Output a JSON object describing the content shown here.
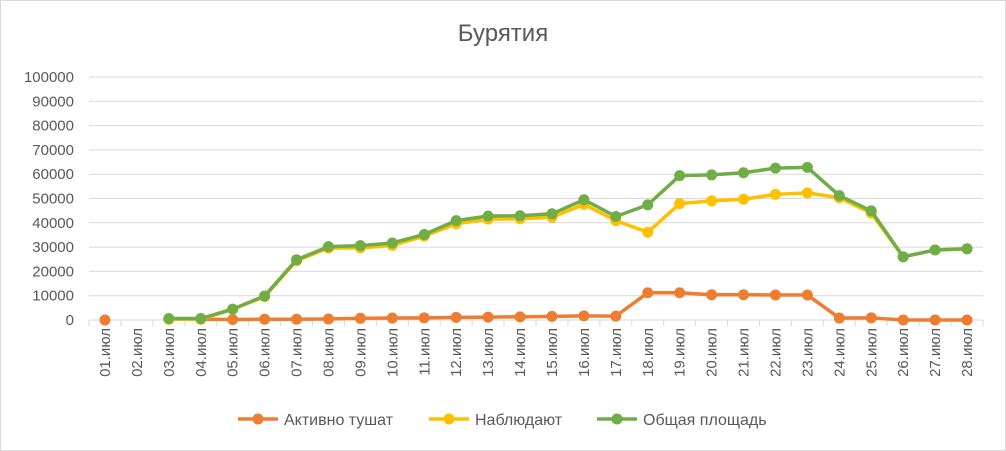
{
  "chart_data": {
    "type": "line",
    "title": "Бурятия",
    "xlabel": "",
    "ylabel": "",
    "ylim": [
      0,
      100000
    ],
    "yticks": [
      0,
      10000,
      20000,
      30000,
      40000,
      50000,
      60000,
      70000,
      80000,
      90000,
      100000
    ],
    "grid": true,
    "legend_position": "bottom",
    "categories": [
      "01.июл",
      "02.июл",
      "03.июл",
      "04.июл",
      "05.июл",
      "06.июл",
      "07.июл",
      "08.июл",
      "09.июл",
      "10.июл",
      "11.июл",
      "12.июл",
      "13.июл",
      "14.июл",
      "15.июл",
      "16.июл",
      "17.июл",
      "18.июл",
      "19.июл",
      "20.июл",
      "21.июл",
      "22.июл",
      "23.июл",
      "24.июл",
      "25.июл",
      "26.июл",
      "27.июл",
      "28.июл"
    ],
    "series": [
      {
        "name": "Активно тушат",
        "color": "#ed7d31",
        "values": [
          0,
          null,
          300,
          300,
          200,
          300,
          300,
          400,
          700,
          800,
          900,
          1100,
          1200,
          1300,
          1500,
          1700,
          1600,
          11200,
          11200,
          10400,
          10400,
          10300,
          10300,
          800,
          900,
          0,
          0,
          0
        ]
      },
      {
        "name": "Наблюдают",
        "color": "#ffc000",
        "values": [
          null,
          null,
          300,
          300,
          4400,
          9600,
          24400,
          29600,
          29700,
          30700,
          34500,
          39600,
          41500,
          41600,
          42300,
          47600,
          40900,
          36100,
          47900,
          49000,
          49700,
          51700,
          52300,
          50300,
          44000,
          26000,
          28800,
          29300
        ]
      },
      {
        "name": "Общая площадь",
        "color": "#70ad47",
        "values": [
          null,
          null,
          600,
          600,
          4500,
          9900,
          24800,
          30200,
          30600,
          31700,
          35200,
          40900,
          42800,
          42900,
          43700,
          49500,
          42600,
          47400,
          59400,
          59700,
          60600,
          62500,
          62800,
          51200,
          44900,
          26000,
          28800,
          29300
        ]
      }
    ]
  }
}
